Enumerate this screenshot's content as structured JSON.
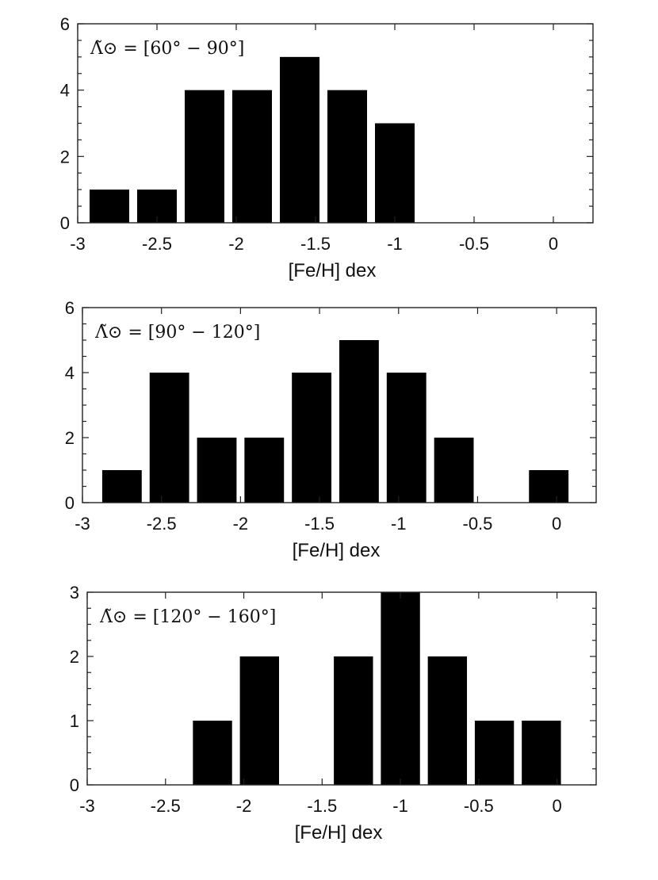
{
  "chart_data": [
    {
      "type": "bar",
      "annotation": "Λ̃⊙ = [60° − 90°]",
      "xlabel": "[Fe/H] dex",
      "ylabel": "",
      "xlim": [
        -3,
        0.25
      ],
      "ylim": [
        0,
        6
      ],
      "x_ticks": [
        -3,
        -2.5,
        -2,
        -1.5,
        -1,
        -0.5,
        0
      ],
      "x_tick_labels": [
        "-3",
        "-2.5",
        "-2",
        "-1.5",
        "-1",
        "-0.5",
        "0"
      ],
      "y_ticks": [
        0,
        2,
        4,
        6
      ],
      "y_tick_labels": [
        "0",
        "2",
        "4",
        "6"
      ],
      "y_minor_step": 0.5,
      "bar_width": 0.25,
      "bar_color": "#000000",
      "bins": [
        -2.8,
        -2.5,
        -2.2,
        -1.9,
        -1.6,
        -1.3,
        -1.0
      ],
      "values": [
        1,
        1,
        4,
        4,
        5,
        4,
        3
      ]
    },
    {
      "type": "bar",
      "annotation": "Λ̃⊙ = [90° − 120°]",
      "xlabel": "[Fe/H] dex",
      "ylabel": "",
      "xlim": [
        -3,
        0.25
      ],
      "ylim": [
        0,
        6
      ],
      "x_ticks": [
        -3,
        -2.5,
        -2,
        -1.5,
        -1,
        -0.5,
        0
      ],
      "x_tick_labels": [
        "-3",
        "-2.5",
        "-2",
        "-1.5",
        "-1",
        "-0.5",
        "0"
      ],
      "y_ticks": [
        0,
        2,
        4,
        6
      ],
      "y_tick_labels": [
        "0",
        "2",
        "4",
        "6"
      ],
      "y_minor_step": 0.5,
      "bar_width": 0.25,
      "bar_color": "#000000",
      "bins": [
        -2.75,
        -2.45,
        -2.15,
        -1.85,
        -1.55,
        -1.25,
        -0.95,
        -0.65,
        -0.05
      ],
      "values": [
        1,
        4,
        2,
        2,
        4,
        5,
        4,
        2,
        1
      ]
    },
    {
      "type": "bar",
      "annotation": "Λ̃⊙ = [120° − 160°]",
      "xlabel": "[Fe/H] dex",
      "ylabel": "",
      "xlim": [
        -3,
        0.25
      ],
      "ylim": [
        0,
        3
      ],
      "x_ticks": [
        -3,
        -2.5,
        -2,
        -1.5,
        -1,
        -0.5,
        0
      ],
      "x_tick_labels": [
        "-3",
        "-2.5",
        "-2",
        "-1.5",
        "-1",
        "-0.5",
        "0"
      ],
      "y_ticks": [
        0,
        1,
        2,
        3
      ],
      "y_tick_labels": [
        "0",
        "1",
        "2",
        "3"
      ],
      "y_minor_step": 0.25,
      "bar_width": 0.25,
      "bar_color": "#000000",
      "bins": [
        -2.2,
        -1.9,
        -1.3,
        -1.0,
        -0.7,
        -0.4,
        -0.1
      ],
      "values": [
        1,
        2,
        2,
        3,
        2,
        1,
        1
      ]
    }
  ]
}
